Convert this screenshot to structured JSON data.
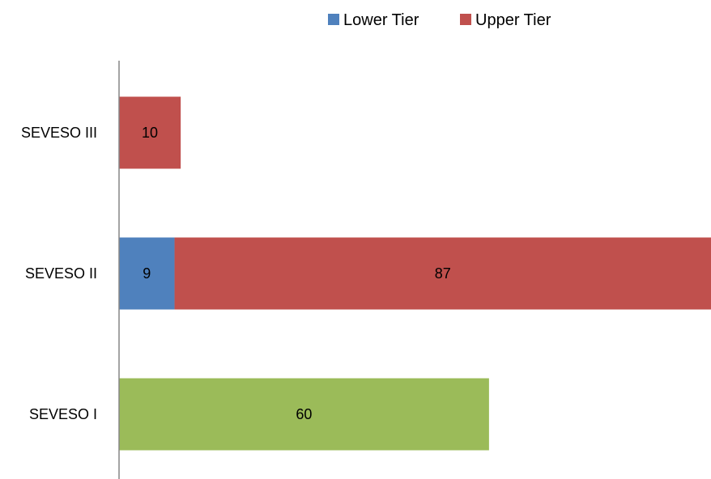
{
  "chart_data": {
    "type": "bar",
    "orientation": "horizontal",
    "stacked": true,
    "categories": [
      "SEVESO III",
      "SEVESO II",
      "SEVESO I"
    ],
    "series": [
      {
        "name": "Lower Tier",
        "color": "#4F81BD",
        "values": [
          0,
          9,
          0
        ]
      },
      {
        "name": "Upper Tier",
        "color": "#C0504D",
        "values": [
          10,
          87,
          0
        ]
      },
      {
        "color": "#9BBB59",
        "values": [
          0,
          0,
          60
        ]
      }
    ],
    "legend": {
      "position": "top",
      "entries": [
        "Lower Tier",
        "Upper Tier"
      ]
    },
    "xlim": [
      0,
      96
    ],
    "grid": false,
    "show_data_labels": true
  }
}
